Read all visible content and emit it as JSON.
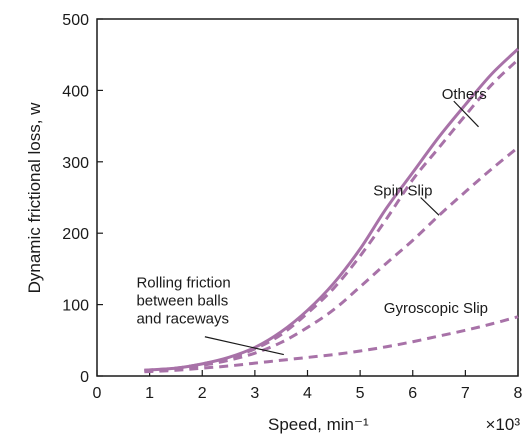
{
  "chart_data": {
    "type": "line",
    "xlabel": "Speed, min⁻¹",
    "ylabel": "Dynamic frictional loss, w",
    "x_multiplier": "×10³",
    "xlim": [
      0,
      8
    ],
    "ylim": [
      0,
      500
    ],
    "xticks": [
      "0",
      "1",
      "2",
      "3",
      "4",
      "5",
      "6",
      "7",
      "8"
    ],
    "yticks": [
      "0",
      "100",
      "200",
      "300",
      "400",
      "500"
    ],
    "series": [
      {
        "style": "solid",
        "color": "#a872a8",
        "x": [
          0.9,
          1.5,
          2.0,
          2.5,
          3.0,
          3.5,
          4.0,
          4.5,
          5.0,
          5.5,
          6.0,
          6.5,
          7.0,
          7.5,
          8.0
        ],
        "y": [
          8,
          11,
          17,
          26,
          40,
          62,
          92,
          130,
          178,
          235,
          285,
          335,
          380,
          423,
          458
        ]
      },
      {
        "style": "dashed",
        "color": "#a872a8",
        "x": [
          0.9,
          1.5,
          2.0,
          2.5,
          3.0,
          3.5,
          4.0,
          4.5,
          5.0,
          5.5,
          6.0,
          6.5,
          7.0,
          7.5,
          8.0
        ],
        "y": [
          8,
          11,
          17,
          25,
          38,
          58,
          88,
          123,
          168,
          220,
          275,
          320,
          365,
          408,
          443
        ]
      },
      {
        "style": "dashed",
        "color": "#a872a8",
        "x": [
          0.9,
          1.5,
          2.0,
          2.5,
          3.0,
          3.5,
          4.0,
          4.5,
          5.0,
          5.5,
          6.0,
          6.5,
          7.0,
          7.5,
          8.0
        ],
        "y": [
          7,
          10,
          15,
          22,
          32,
          47,
          68,
          93,
          125,
          158,
          190,
          225,
          258,
          290,
          320
        ]
      },
      {
        "style": "dashed",
        "color": "#a872a8",
        "x": [
          0.9,
          1.5,
          2.0,
          2.5,
          3.0,
          3.5,
          4.0,
          4.5,
          5.0,
          5.5,
          6.0,
          6.5,
          7.0,
          7.5,
          8.0
        ],
        "y": [
          6,
          8,
          11,
          14,
          18,
          22,
          26,
          30,
          35,
          41,
          48,
          56,
          64,
          73,
          83
        ]
      }
    ],
    "annotations": [
      {
        "lines": [
          "Others"
        ],
        "label_x": 6.55,
        "label_y": 388,
        "leader_from": [
          6.78,
          385
        ],
        "leader_to": [
          7.25,
          349
        ]
      },
      {
        "lines": [
          "Spin Slip"
        ],
        "label_x": 5.25,
        "label_y": 253,
        "leader_from": [
          6.15,
          250
        ],
        "leader_to": [
          6.5,
          225
        ]
      },
      {
        "lines": [
          "Rolling friction",
          "between balls",
          "and raceways"
        ],
        "label_x": 0.75,
        "label_y": 124,
        "leader_from": [
          2.05,
          55
        ],
        "leader_to": [
          3.55,
          30
        ]
      },
      {
        "lines": [
          "Gyroscopic Slip"
        ],
        "label_x": 5.45,
        "label_y": 88,
        "leader_from": null,
        "leader_to": null
      }
    ]
  }
}
